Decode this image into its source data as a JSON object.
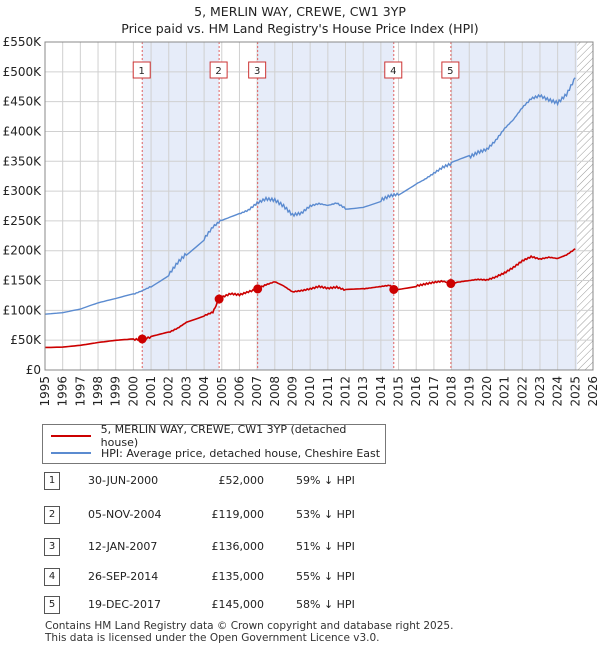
{
  "header": {
    "title": "5, MERLIN WAY, CREWE, CW1 3YP",
    "subtitle": "Price paid vs. HM Land Registry's House Price Index (HPI)"
  },
  "colors": {
    "property": "#cc0000",
    "hpi": "#5b8bd0",
    "shade": "#dde6f7",
    "grid": "#d0d0d0",
    "marker_border": "#cc3333"
  },
  "chart_data": {
    "type": "line",
    "title": "Price paid vs. HM Land Registry's House Price Index (HPI)",
    "xlabel": "",
    "ylabel": "",
    "xlim": [
      1995,
      2026
    ],
    "ylim": [
      0,
      550000
    ],
    "y_ticks": [
      {
        "value": 0,
        "label": "£0"
      },
      {
        "value": 50000,
        "label": "£50K"
      },
      {
        "value": 100000,
        "label": "£100K"
      },
      {
        "value": 150000,
        "label": "£150K"
      },
      {
        "value": 200000,
        "label": "£200K"
      },
      {
        "value": 250000,
        "label": "£250K"
      },
      {
        "value": 300000,
        "label": "£300K"
      },
      {
        "value": 350000,
        "label": "£350K"
      },
      {
        "value": 400000,
        "label": "£400K"
      },
      {
        "value": 450000,
        "label": "£450K"
      },
      {
        "value": 500000,
        "label": "£500K"
      },
      {
        "value": 550000,
        "label": "£550K"
      }
    ],
    "x_ticks": [
      1995,
      1996,
      1997,
      1998,
      1999,
      2000,
      2001,
      2002,
      2003,
      2004,
      2005,
      2006,
      2007,
      2008,
      2009,
      2010,
      2011,
      2012,
      2013,
      2014,
      2015,
      2016,
      2017,
      2018,
      2019,
      2020,
      2021,
      2022,
      2023,
      2024,
      2025,
      2026
    ],
    "future_from": 2025.1,
    "grid": true,
    "series": [
      {
        "name": "5, MERLIN WAY, CREWE, CW1 3YP (detached house)",
        "color": "#cc0000",
        "points": [
          [
            1995.0,
            39000
          ],
          [
            1996.0,
            39500
          ],
          [
            1997.0,
            42000
          ],
          [
            1998.0,
            46000
          ],
          [
            1999.0,
            49000
          ],
          [
            2000.0,
            51000
          ],
          [
            2000.5,
            52000
          ],
          [
            2001.0,
            55000
          ],
          [
            2002.0,
            63000
          ],
          [
            2002.5,
            70000
          ],
          [
            2003.0,
            80000
          ],
          [
            2004.0,
            91000
          ],
          [
            2004.5,
            97000
          ],
          [
            2004.85,
            119000
          ],
          [
            2005.0,
            122000
          ],
          [
            2005.5,
            128000
          ],
          [
            2006.0,
            126000
          ],
          [
            2006.5,
            131000
          ],
          [
            2007.03,
            136000
          ],
          [
            2007.5,
            143000
          ],
          [
            2008.0,
            148000
          ],
          [
            2008.5,
            141000
          ],
          [
            2009.0,
            131000
          ],
          [
            2009.5,
            133000
          ],
          [
            2010.0,
            136000
          ],
          [
            2010.5,
            140000
          ],
          [
            2011.0,
            137000
          ],
          [
            2011.5,
            139000
          ],
          [
            2012.0,
            134000
          ],
          [
            2013.0,
            136000
          ],
          [
            2013.5,
            138000
          ],
          [
            2014.0,
            140000
          ],
          [
            2014.5,
            142000
          ],
          [
            2014.73,
            135000
          ],
          [
            2015.0,
            136000
          ],
          [
            2016.0,
            141000
          ],
          [
            2016.5,
            144000
          ],
          [
            2017.0,
            147000
          ],
          [
            2017.5,
            149000
          ],
          [
            2017.96,
            145000
          ],
          [
            2018.5,
            148000
          ],
          [
            2019.0,
            150000
          ],
          [
            2019.5,
            152000
          ],
          [
            2020.0,
            151000
          ],
          [
            2020.5,
            156000
          ],
          [
            2021.0,
            163000
          ],
          [
            2021.5,
            172000
          ],
          [
            2022.0,
            183000
          ],
          [
            2022.5,
            190000
          ],
          [
            2023.0,
            186000
          ],
          [
            2023.5,
            189000
          ],
          [
            2024.0,
            187000
          ],
          [
            2024.5,
            193000
          ],
          [
            2025.0,
            203000
          ]
        ]
      },
      {
        "name": "HPI: Average price, detached house, Cheshire East",
        "color": "#5b8bd0",
        "points": [
          [
            1995.0,
            94000
          ],
          [
            1996.0,
            95000
          ],
          [
            1997.0,
            100000
          ],
          [
            1998.0,
            110000
          ],
          [
            1999.0,
            118000
          ],
          [
            2000.0,
            127000
          ],
          [
            2000.5,
            133000
          ],
          [
            2001.0,
            140000
          ],
          [
            2002.0,
            160000
          ],
          [
            2002.5,
            180000
          ],
          [
            2003.0,
            195000
          ],
          [
            2004.0,
            220000
          ],
          [
            2004.5,
            240000
          ],
          [
            2005.0,
            252000
          ],
          [
            2006.0,
            262000
          ],
          [
            2006.5,
            268000
          ],
          [
            2007.0,
            280000
          ],
          [
            2007.5,
            287000
          ],
          [
            2008.0,
            285000
          ],
          [
            2008.5,
            275000
          ],
          [
            2009.0,
            260000
          ],
          [
            2009.5,
            263000
          ],
          [
            2010.0,
            275000
          ],
          [
            2010.5,
            279000
          ],
          [
            2011.0,
            276000
          ],
          [
            2011.5,
            280000
          ],
          [
            2012.0,
            271000
          ],
          [
            2013.0,
            275000
          ],
          [
            2014.0,
            285000
          ],
          [
            2014.5,
            292000
          ],
          [
            2015.0,
            295000
          ],
          [
            2016.0,
            312000
          ],
          [
            2016.5,
            320000
          ],
          [
            2017.0,
            330000
          ],
          [
            2017.5,
            340000
          ],
          [
            2018.0,
            346000
          ],
          [
            2019.0,
            357000
          ],
          [
            2019.5,
            365000
          ],
          [
            2020.0,
            370000
          ],
          [
            2020.5,
            385000
          ],
          [
            2021.0,
            405000
          ],
          [
            2021.5,
            420000
          ],
          [
            2022.0,
            440000
          ],
          [
            2022.5,
            455000
          ],
          [
            2023.0,
            460000
          ],
          [
            2023.5,
            453000
          ],
          [
            2024.0,
            448000
          ],
          [
            2024.5,
            462000
          ],
          [
            2025.0,
            490000
          ]
        ]
      }
    ],
    "sales": [
      {
        "num": "1",
        "x": 2000.5,
        "value": 52000
      },
      {
        "num": "2",
        "x": 2004.85,
        "value": 119000
      },
      {
        "num": "3",
        "x": 2007.03,
        "value": 136000
      },
      {
        "num": "4",
        "x": 2014.73,
        "value": 135000
      },
      {
        "num": "5",
        "x": 2017.96,
        "value": 145000
      }
    ],
    "shaded_periods": [
      [
        2000.5,
        2004.85
      ],
      [
        2007.03,
        2014.73
      ],
      [
        2017.96,
        2025.1
      ]
    ]
  },
  "legend": {
    "property_label": "5, MERLIN WAY, CREWE, CW1 3YP (detached house)",
    "hpi_label": "HPI: Average price, detached house, Cheshire East"
  },
  "sales_table": [
    {
      "num": "1",
      "date": "30-JUN-2000",
      "price": "£52,000",
      "hpi": "59% ↓ HPI"
    },
    {
      "num": "2",
      "date": "05-NOV-2004",
      "price": "£119,000",
      "hpi": "53% ↓ HPI"
    },
    {
      "num": "3",
      "date": "12-JAN-2007",
      "price": "£136,000",
      "hpi": "51% ↓ HPI"
    },
    {
      "num": "4",
      "date": "26-SEP-2014",
      "price": "£135,000",
      "hpi": "55% ↓ HPI"
    },
    {
      "num": "5",
      "date": "19-DEC-2017",
      "price": "£145,000",
      "hpi": "58% ↓ HPI"
    }
  ],
  "footer": {
    "line1": "Contains HM Land Registry data © Crown copyright and database right 2025.",
    "line2": "This data is licensed under the Open Government Licence v3.0."
  }
}
